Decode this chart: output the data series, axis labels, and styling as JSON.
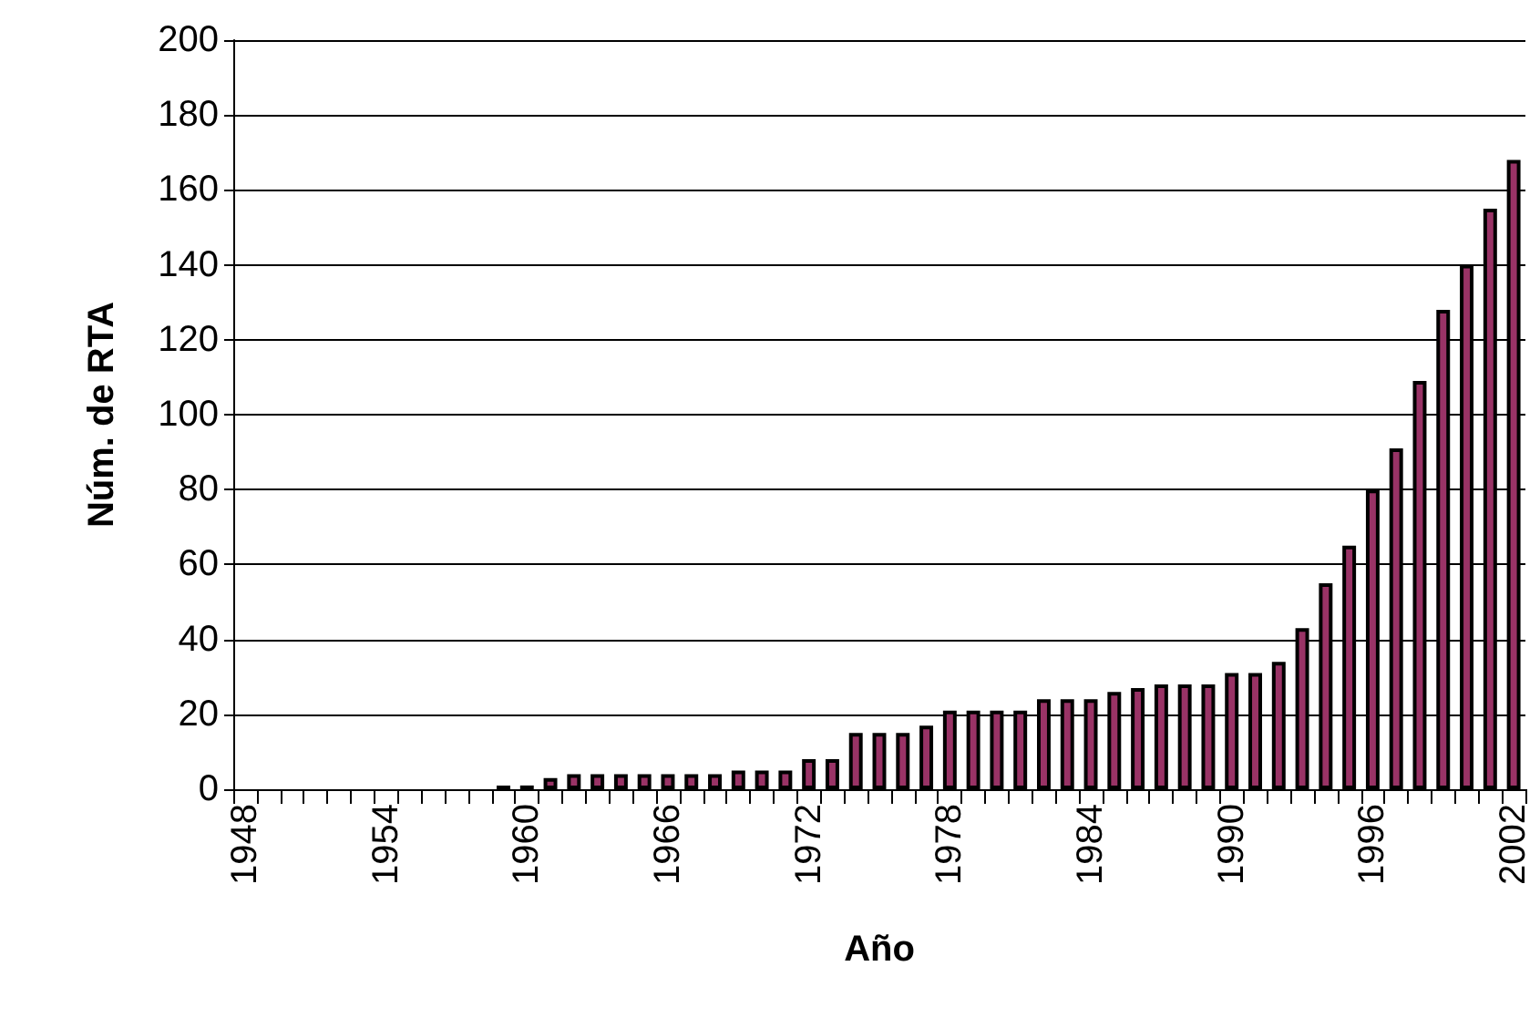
{
  "chart_data": {
    "type": "bar",
    "xlabel": "Año",
    "ylabel": "Núm. de RTA",
    "categories": [
      "1948",
      null,
      null,
      null,
      null,
      null,
      "1954",
      null,
      null,
      null,
      null,
      null,
      "1960",
      null,
      null,
      null,
      null,
      null,
      "1966",
      null,
      null,
      null,
      null,
      null,
      "1972",
      null,
      null,
      null,
      null,
      null,
      "1978",
      null,
      null,
      null,
      null,
      null,
      "1984",
      null,
      null,
      null,
      null,
      null,
      "1990",
      null,
      null,
      null,
      null,
      null,
      "1996",
      null,
      null,
      null,
      null,
      null,
      "2002"
    ],
    "values": [
      0,
      0,
      0,
      0,
      0,
      0,
      0,
      0,
      0,
      0,
      0,
      1,
      1,
      3,
      4,
      4,
      4,
      4,
      4,
      4,
      4,
      5,
      5,
      5,
      8,
      8,
      15,
      15,
      15,
      17,
      21,
      21,
      21,
      21,
      24,
      24,
      24,
      26,
      27,
      28,
      28,
      28,
      31,
      31,
      34,
      43,
      55,
      65,
      80,
      91,
      109,
      128,
      140,
      155,
      168
    ],
    "color": "#993366",
    "ylim": [
      0,
      200
    ],
    "yticks": [
      0,
      20,
      40,
      60,
      80,
      100,
      120,
      140,
      160,
      180,
      200
    ],
    "grid": "y"
  }
}
